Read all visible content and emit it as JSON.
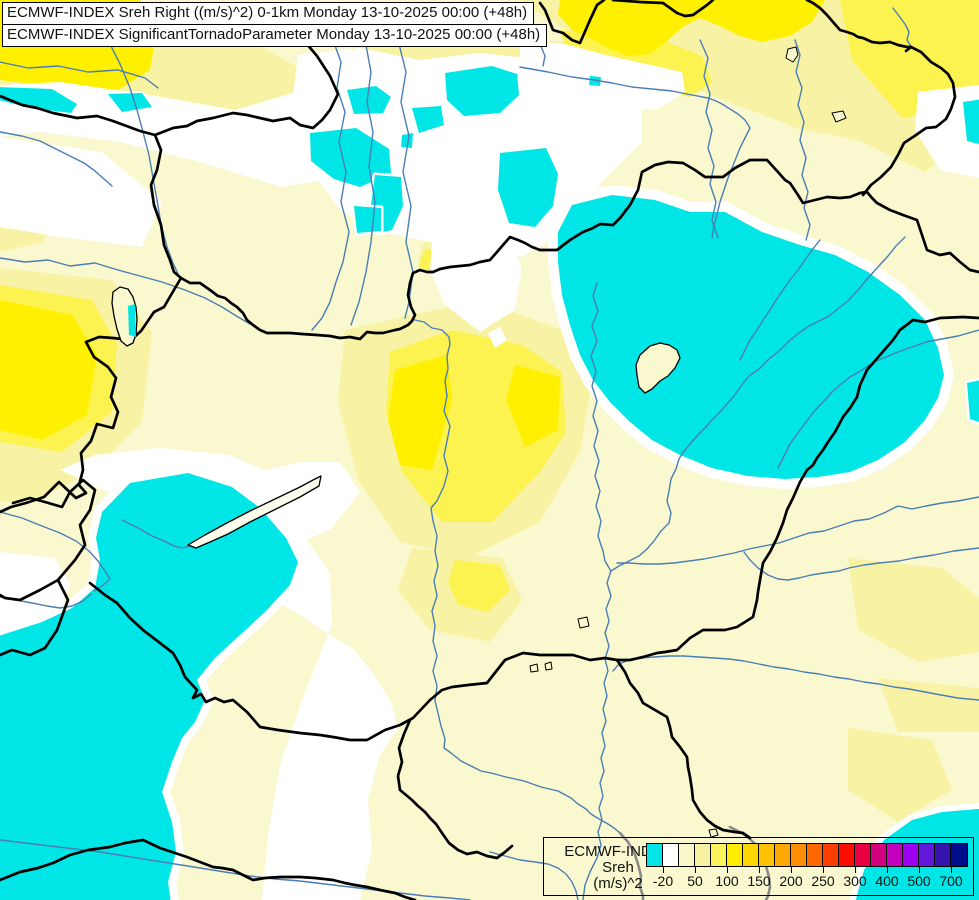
{
  "title": {
    "line1": "ECMWF-INDEX Sreh Right ((m/s)^2) 0-1km Monday 13-10-2025 00:00 (+48h)",
    "line2": "ECMWF-INDEX SignificantTornadoParameter Monday 13-10-2025 00:00 (+48h)"
  },
  "legend": {
    "title_lines": [
      "ECMWF-INDEX",
      "Sreh",
      "(m/s)^2"
    ],
    "ticks": [
      "-20",
      "50",
      "100",
      "150",
      "200",
      "250",
      "300",
      "400",
      "500",
      "700"
    ],
    "colors": [
      "#00E6E6",
      "#FFFFFF",
      "#FAF8C8",
      "#F7F2A0",
      "#FBF35B",
      "#FFEC00",
      "#FFD600",
      "#FFC100",
      "#FFA800",
      "#FF8D00",
      "#FF6700",
      "#FF3E00",
      "#FF0E00",
      "#E90042",
      "#D2007F",
      "#C400BE",
      "#9C00EF",
      "#6316DC",
      "#3613AF",
      "#000D8B"
    ]
  },
  "map": {
    "colors": {
      "base": "#FAF8CE",
      "white": "#FFFFFF",
      "ly": "#F8F3A4",
      "my": "#FCF351",
      "by": "#FFF000",
      "cyan": "#00E6E6",
      "river": "#4A7EB5",
      "gray": "#8A8A8A",
      "border": "#000000"
    }
  }
}
